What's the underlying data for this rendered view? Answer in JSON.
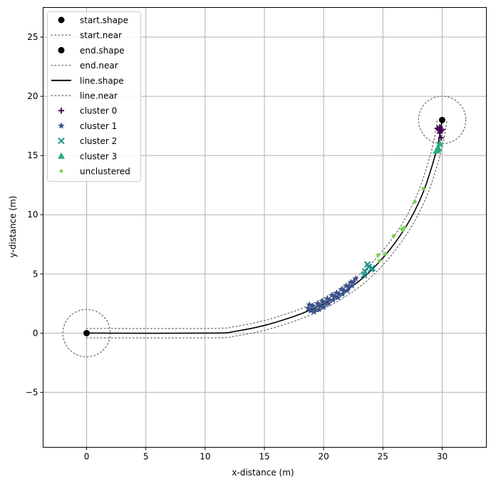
{
  "chart_data": {
    "type": "scatter",
    "title": "",
    "xlabel": "x-distance (m)",
    "ylabel": "y-distance (m)",
    "xlim": [
      -3.67,
      33.73
    ],
    "ylim": [
      -9.64,
      27.5
    ],
    "grid": true,
    "legend_position": "upper left",
    "xticks": [
      0,
      5,
      10,
      15,
      20,
      25,
      30
    ],
    "yticks": [
      -5,
      0,
      5,
      10,
      15,
      20,
      25
    ],
    "xtick_labels": [
      "0",
      "5",
      "10",
      "15",
      "20",
      "25",
      "30"
    ],
    "ytick_labels": [
      "−5",
      "0",
      "5",
      "10",
      "15",
      "20",
      "25"
    ],
    "series": [
      {
        "name": "start.shape",
        "kind": "scatter",
        "marker": "circle",
        "color": "#000000",
        "points": [
          [
            0,
            0
          ]
        ]
      },
      {
        "name": "start.near",
        "kind": "circle-outline",
        "style": "dotted",
        "color": "#808080",
        "center": [
          0,
          0
        ],
        "radius": 2
      },
      {
        "name": "end.shape",
        "kind": "scatter",
        "marker": "circle",
        "color": "#000000",
        "points": [
          [
            30,
            18
          ]
        ]
      },
      {
        "name": "end.near",
        "kind": "circle-outline",
        "style": "dotted",
        "color": "#808080",
        "center": [
          30,
          18
        ],
        "radius": 2
      },
      {
        "name": "line.shape",
        "kind": "line",
        "style": "solid",
        "color": "#000000",
        "points": [
          [
            0,
            0
          ],
          [
            10.5,
            0
          ],
          [
            12.5,
            0.15
          ],
          [
            15,
            0.65
          ],
          [
            17,
            1.25
          ],
          [
            18.5,
            1.8
          ],
          [
            20,
            2.5
          ],
          [
            21.5,
            3.35
          ],
          [
            23,
            4.4
          ],
          [
            24.5,
            5.8
          ],
          [
            26,
            7.6
          ],
          [
            27.3,
            9.6
          ],
          [
            28.4,
            11.9
          ],
          [
            29.2,
            14.3
          ],
          [
            29.7,
            16.2
          ],
          [
            30,
            18
          ]
        ]
      },
      {
        "name": "line.near",
        "kind": "buffer-outline",
        "style": "dotted",
        "color": "#808080",
        "offset": 0.4
      },
      {
        "name": "cluster 0",
        "kind": "scatter",
        "marker": "plus",
        "color": "#440154",
        "points": [
          [
            29.8,
            17.4
          ],
          [
            29.7,
            17.2
          ],
          [
            29.9,
            17.1
          ],
          [
            29.8,
            16.9
          ],
          [
            29.6,
            17.3
          ],
          [
            30.0,
            17.2
          ],
          [
            29.9,
            16.5
          ]
        ]
      },
      {
        "name": "cluster 1",
        "kind": "scatter",
        "marker": "star",
        "color": "#3b528b",
        "points": [
          [
            18.7,
            2.1
          ],
          [
            18.9,
            1.9
          ],
          [
            19.1,
            2.3
          ],
          [
            19.3,
            2.0
          ],
          [
            19.5,
            2.5
          ],
          [
            19.7,
            2.3
          ],
          [
            19.9,
            2.7
          ],
          [
            20.1,
            2.5
          ],
          [
            20.3,
            2.9
          ],
          [
            20.5,
            2.8
          ],
          [
            20.7,
            3.2
          ],
          [
            20.9,
            3.1
          ],
          [
            21.1,
            3.4
          ],
          [
            21.3,
            3.3
          ],
          [
            21.5,
            3.7
          ],
          [
            21.7,
            3.6
          ],
          [
            21.9,
            4.0
          ],
          [
            22.1,
            3.9
          ],
          [
            22.3,
            4.3
          ],
          [
            22.5,
            4.3
          ],
          [
            22.7,
            4.6
          ],
          [
            18.8,
            2.4
          ],
          [
            19.2,
            1.8
          ],
          [
            19.6,
            2.0
          ],
          [
            20.0,
            2.2
          ],
          [
            20.4,
            2.5
          ],
          [
            20.8,
            2.8
          ],
          [
            21.2,
            3.0
          ],
          [
            21.6,
            3.3
          ],
          [
            22.0,
            3.6
          ],
          [
            22.4,
            4.0
          ]
        ]
      },
      {
        "name": "cluster 2",
        "kind": "scatter",
        "marker": "x",
        "color": "#21918c",
        "points": [
          [
            23.4,
            4.9
          ],
          [
            23.5,
            5.2
          ],
          [
            23.8,
            5.6
          ],
          [
            24.0,
            5.4
          ],
          [
            24.1,
            5.5
          ],
          [
            23.7,
            5.8
          ]
        ]
      },
      {
        "name": "cluster 3",
        "kind": "scatter",
        "marker": "triangle",
        "color": "#27ad81",
        "points": [
          [
            29.5,
            15.4
          ],
          [
            29.7,
            15.6
          ],
          [
            29.8,
            16.0
          ],
          [
            29.6,
            15.5
          ]
        ]
      },
      {
        "name": "unclustered",
        "kind": "scatter",
        "marker": "point",
        "color": "#7ad151",
        "points": [
          [
            28.4,
            12.2
          ],
          [
            27.7,
            11.1
          ],
          [
            26.8,
            8.9
          ],
          [
            26.6,
            8.8
          ],
          [
            26.7,
            8.7
          ],
          [
            25.9,
            8.2
          ],
          [
            24.6,
            6.6
          ],
          [
            25.2,
            6.7
          ],
          [
            24.7,
            6.1
          ]
        ]
      }
    ]
  },
  "legend": {
    "items": [
      {
        "label": "start.shape"
      },
      {
        "label": "start.near"
      },
      {
        "label": "end.shape"
      },
      {
        "label": "end.near"
      },
      {
        "label": "line.shape"
      },
      {
        "label": "line.near"
      },
      {
        "label": "cluster 0"
      },
      {
        "label": "cluster 1"
      },
      {
        "label": "cluster 2"
      },
      {
        "label": "cluster 3"
      },
      {
        "label": "unclustered"
      }
    ]
  }
}
